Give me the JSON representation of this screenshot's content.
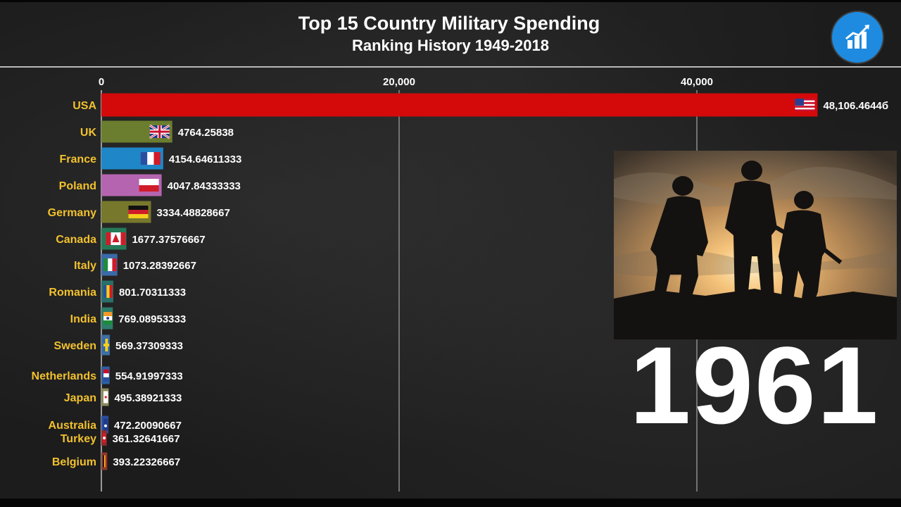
{
  "header": {
    "title": "Top 15 Country Military Spending",
    "subtitle": "Ranking History 1949-2018"
  },
  "year_label": "1961",
  "icons": {
    "logo": "bar-chart-trend-icon",
    "photo": "soldiers-silhouette-sunset-image"
  },
  "colors": {
    "background": "#1c1c1c",
    "country_label": "#f2c12e",
    "value_label": "#ffffff",
    "axis_tick": "#ffffff",
    "logo": "#1e8be0"
  },
  "chart_data": {
    "type": "bar",
    "orientation": "horizontal",
    "title": "Top 15 Country Military Spending",
    "subtitle": "Ranking History 1949-2018",
    "xlim": [
      0,
      53000
    ],
    "x_ticks": [
      0,
      20000,
      40000
    ],
    "x_tick_labels": [
      "0",
      "20,000",
      "40,000"
    ],
    "grid": true,
    "bars": [
      {
        "category": "USA",
        "value": 48106.46446,
        "value_label": "48,106.4644б",
        "color": "#d40a0a",
        "flag": "usa-flag-icon"
      },
      {
        "category": "UK",
        "value": 4764.25838,
        "value_label": "4764.25838",
        "color": "#6b7d2e",
        "flag": "uk-flag-icon"
      },
      {
        "category": "France",
        "value": 4154.64611333,
        "value_label": "4154.64611333",
        "color": "#1f86c8",
        "flag": "france-flag-icon"
      },
      {
        "category": "Poland",
        "value": 4047.84333333,
        "value_label": "4047.84333333",
        "color": "#b565b0",
        "flag": "poland-flag-icon"
      },
      {
        "category": "Germany",
        "value": 3334.48828667,
        "value_label": "3334.48828667",
        "color": "#77782c",
        "flag": "germany-flag-icon"
      },
      {
        "category": "Canada",
        "value": 1677.37576667,
        "value_label": "1677.37576667",
        "color": "#267a58",
        "flag": "canada-flag-icon"
      },
      {
        "category": "Italy",
        "value": 1073.28392667,
        "value_label": "1073.28392667",
        "color": "#3a6aa8",
        "flag": "italy-flag-icon"
      },
      {
        "category": "Romania",
        "value": 801.70311333,
        "value_label": "801.70311333",
        "color": "#2a6f6a",
        "flag": "romania-flag-icon"
      },
      {
        "category": "India",
        "value": 769.08953333,
        "value_label": "769.08953333",
        "color": "#2f7d6b",
        "flag": "india-flag-icon"
      },
      {
        "category": "Sweden",
        "value": 569.37309333,
        "value_label": "569.37309333",
        "color": "#3d6fa5",
        "flag": "sweden-flag-icon"
      },
      {
        "category": "Netherlands",
        "value": 554.91997333,
        "value_label": "554.91997333",
        "color": "#2e5fa0",
        "flag": "netherlands-flag-icon"
      },
      {
        "category": "Japan",
        "value": 495.38921333,
        "value_label": "495.38921333",
        "color": "#8a8a5a",
        "flag": "japan-flag-icon"
      },
      {
        "category": "Australia",
        "value": 472.20090667,
        "value_label": "472.20090667",
        "color": "#2a4fa0",
        "flag": "australia-flag-icon"
      },
      {
        "category": "Turkey",
        "value": 361.32641667,
        "value_label": "361.32641667",
        "color": "#8a2a2a",
        "flag": "turkey-flag-icon"
      },
      {
        "category": "Belgium",
        "value": 393.22326667,
        "value_label": "393.22326667",
        "color": "#8a3a2a",
        "flag": "belgium-flag-icon"
      }
    ]
  }
}
